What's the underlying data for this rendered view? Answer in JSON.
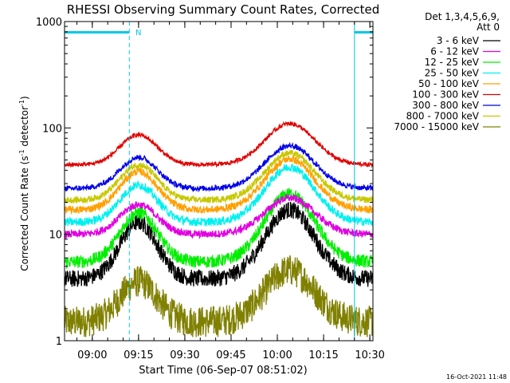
{
  "chart_data": {
    "type": "line",
    "title": "RHESSI Observing Summary Count Rates, Corrected",
    "xlabel": "Start Time (06-Sep-07 08:51:02)",
    "ylabel_main": "Corrected Count Rate (s",
    "ylabel_sup1": "-1",
    "ylabel_mid": " detector",
    "ylabel_sup2": "-1",
    "ylabel_end": ")",
    "yscale": "log",
    "ylim": [
      1,
      1000
    ],
    "xlim_minutes": [
      0,
      100
    ],
    "x_ticks": [
      {
        "label": "09:00",
        "minute": 9
      },
      {
        "label": "09:15",
        "minute": 24
      },
      {
        "label": "09:30",
        "minute": 39
      },
      {
        "label": "09:45",
        "minute": 54
      },
      {
        "label": "10:00",
        "minute": 69
      },
      {
        "label": "10:15",
        "minute": 84
      },
      {
        "label": "10:30",
        "minute": 99
      }
    ],
    "y_ticks": [
      {
        "label": "1",
        "value": 1
      },
      {
        "label": "10",
        "value": 10
      },
      {
        "label": "100",
        "value": 100
      },
      {
        "label": "1000",
        "value": 1000
      }
    ],
    "legend_header": [
      "Det 1,3,4,5,6,9,",
      "Att 0"
    ],
    "legend_position": "right",
    "series": [
      {
        "name": "3 - 6 keV",
        "color": "#000000",
        "base": 3.8,
        "peak1": 13,
        "peak2": 17,
        "noise": 0.08
      },
      {
        "name": "6 - 12 keV",
        "color": "#e000e0",
        "base": 10,
        "peak1": 19,
        "peak2": 22,
        "noise": 0.035
      },
      {
        "name": "12 - 25 keV",
        "color": "#00ee00",
        "base": 5.5,
        "peak1": 16,
        "peak2": 24,
        "noise": 0.06
      },
      {
        "name": "25 - 50 keV",
        "color": "#00f0f0",
        "base": 13,
        "peak1": 29,
        "peak2": 43,
        "noise": 0.04
      },
      {
        "name": "50 - 100 keV",
        "color": "#ffa000",
        "base": 17,
        "peak1": 39,
        "peak2": 51,
        "noise": 0.035
      },
      {
        "name": "100 - 300 keV",
        "color": "#e00000",
        "base": 45,
        "peak1": 86,
        "peak2": 110,
        "noise": 0.02
      },
      {
        "name": "300 - 800 keV",
        "color": "#0000e8",
        "base": 27,
        "peak1": 53,
        "peak2": 68,
        "noise": 0.025
      },
      {
        "name": "800 - 7000 keV",
        "color": "#c8c800",
        "base": 21,
        "peak1": 45,
        "peak2": 58,
        "noise": 0.03
      },
      {
        "name": "7000 - 15000 keV",
        "color": "#808000",
        "base": 1.5,
        "peak1": 3.6,
        "peak2": 4.6,
        "noise": 0.15
      }
    ],
    "peak_minutes": [
      24,
      73
    ],
    "night_markers": {
      "color": "#00c8e8",
      "lines_minutes": [
        0,
        21,
        94,
        100
      ],
      "bars_minutes": [
        [
          0,
          21
        ],
        [
          94,
          100
        ]
      ],
      "label": "N",
      "label_minute": 23
    },
    "footer_date": "16-Oct-2021 11:48"
  }
}
